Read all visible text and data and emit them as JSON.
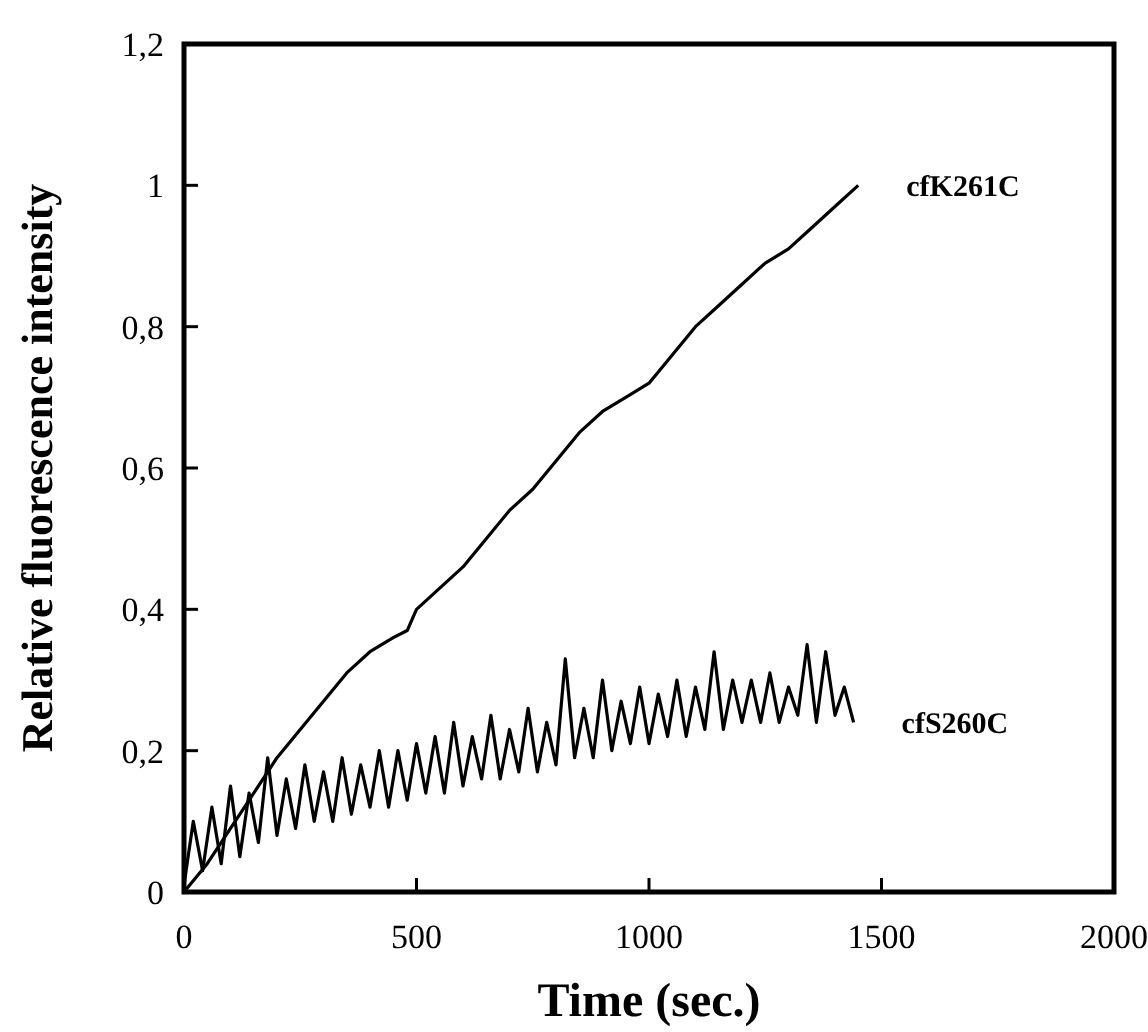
{
  "chart_data": {
    "type": "line",
    "xlabel": "Time (sec.)",
    "ylabel": "Relative fluorescence intensity",
    "xlim": [
      0,
      2000
    ],
    "xticks": [
      0,
      500,
      1000,
      1500,
      2000
    ],
    "ylim": [
      0,
      1.2
    ],
    "yticks": [
      0,
      {
        "value": 0.2,
        "label": "0,2"
      },
      {
        "value": 0.4,
        "label": "0,4"
      },
      {
        "value": 0.6,
        "label": "0,6"
      },
      {
        "value": 0.8,
        "label": "0,8"
      },
      1,
      {
        "value": 1.2,
        "label": "1,2"
      }
    ],
    "grid": false,
    "legend": false,
    "marker": "none",
    "line_style": "solid",
    "series": [
      {
        "name": "cfK261C",
        "color": "#000000",
        "x": [
          0,
          50,
          100,
          150,
          200,
          250,
          300,
          350,
          400,
          450,
          480,
          500,
          550,
          600,
          650,
          700,
          750,
          800,
          850,
          900,
          950,
          1000,
          1050,
          1100,
          1150,
          1200,
          1250,
          1300,
          1350,
          1400,
          1450
        ],
        "values": [
          0,
          0.04,
          0.09,
          0.14,
          0.19,
          0.23,
          0.27,
          0.31,
          0.34,
          0.36,
          0.37,
          0.4,
          0.43,
          0.46,
          0.5,
          0.54,
          0.57,
          0.61,
          0.65,
          0.68,
          0.7,
          0.72,
          0.76,
          0.8,
          0.83,
          0.86,
          0.89,
          0.91,
          0.94,
          0.97,
          1.0
        ]
      },
      {
        "name": "cfS260C",
        "color": "#000000",
        "x": [
          0,
          20,
          40,
          60,
          80,
          100,
          120,
          140,
          160,
          180,
          200,
          220,
          240,
          260,
          280,
          300,
          320,
          340,
          360,
          380,
          400,
          420,
          440,
          460,
          480,
          500,
          520,
          540,
          560,
          580,
          600,
          620,
          640,
          660,
          680,
          700,
          720,
          740,
          760,
          780,
          800,
          820,
          840,
          860,
          880,
          900,
          920,
          940,
          960,
          980,
          1000,
          1020,
          1040,
          1060,
          1080,
          1100,
          1120,
          1140,
          1160,
          1180,
          1200,
          1220,
          1240,
          1260,
          1280,
          1300,
          1320,
          1340,
          1360,
          1380,
          1400,
          1420,
          1440
        ],
        "values": [
          0.01,
          0.1,
          0.03,
          0.12,
          0.04,
          0.15,
          0.05,
          0.14,
          0.07,
          0.19,
          0.08,
          0.16,
          0.09,
          0.18,
          0.1,
          0.17,
          0.1,
          0.19,
          0.11,
          0.18,
          0.12,
          0.2,
          0.12,
          0.2,
          0.13,
          0.21,
          0.14,
          0.22,
          0.14,
          0.24,
          0.15,
          0.22,
          0.16,
          0.25,
          0.16,
          0.23,
          0.17,
          0.26,
          0.17,
          0.24,
          0.18,
          0.33,
          0.19,
          0.26,
          0.19,
          0.3,
          0.2,
          0.27,
          0.21,
          0.29,
          0.21,
          0.28,
          0.22,
          0.3,
          0.22,
          0.29,
          0.23,
          0.34,
          0.23,
          0.3,
          0.24,
          0.3,
          0.24,
          0.31,
          0.24,
          0.29,
          0.25,
          0.35,
          0.24,
          0.34,
          0.25,
          0.29,
          0.24
        ]
      }
    ]
  }
}
